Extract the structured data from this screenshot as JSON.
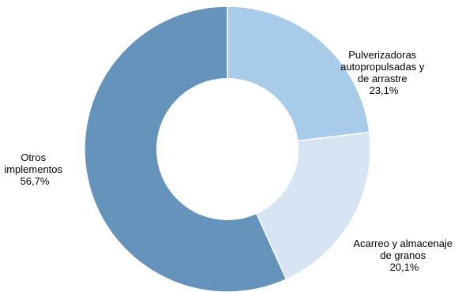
{
  "chart_data": {
    "type": "pie",
    "donut": true,
    "title": "",
    "legend": "none",
    "slices": [
      {
        "label_lines": [
          "Pulverizadoras",
          "autopropulsadas y",
          "de arrastre"
        ],
        "value": 23.1,
        "value_label": "23,1%",
        "color": "#a9cbea"
      },
      {
        "label_lines": [
          "Acarreo y almacenaje",
          "de granos"
        ],
        "value": 20.1,
        "value_label": "20,1%",
        "color": "#d6e4f3"
      },
      {
        "label_lines": [
          "Otros",
          "implementos"
        ],
        "value": 56.7,
        "value_label": "56,7%",
        "color": "#6593bb"
      }
    ]
  }
}
